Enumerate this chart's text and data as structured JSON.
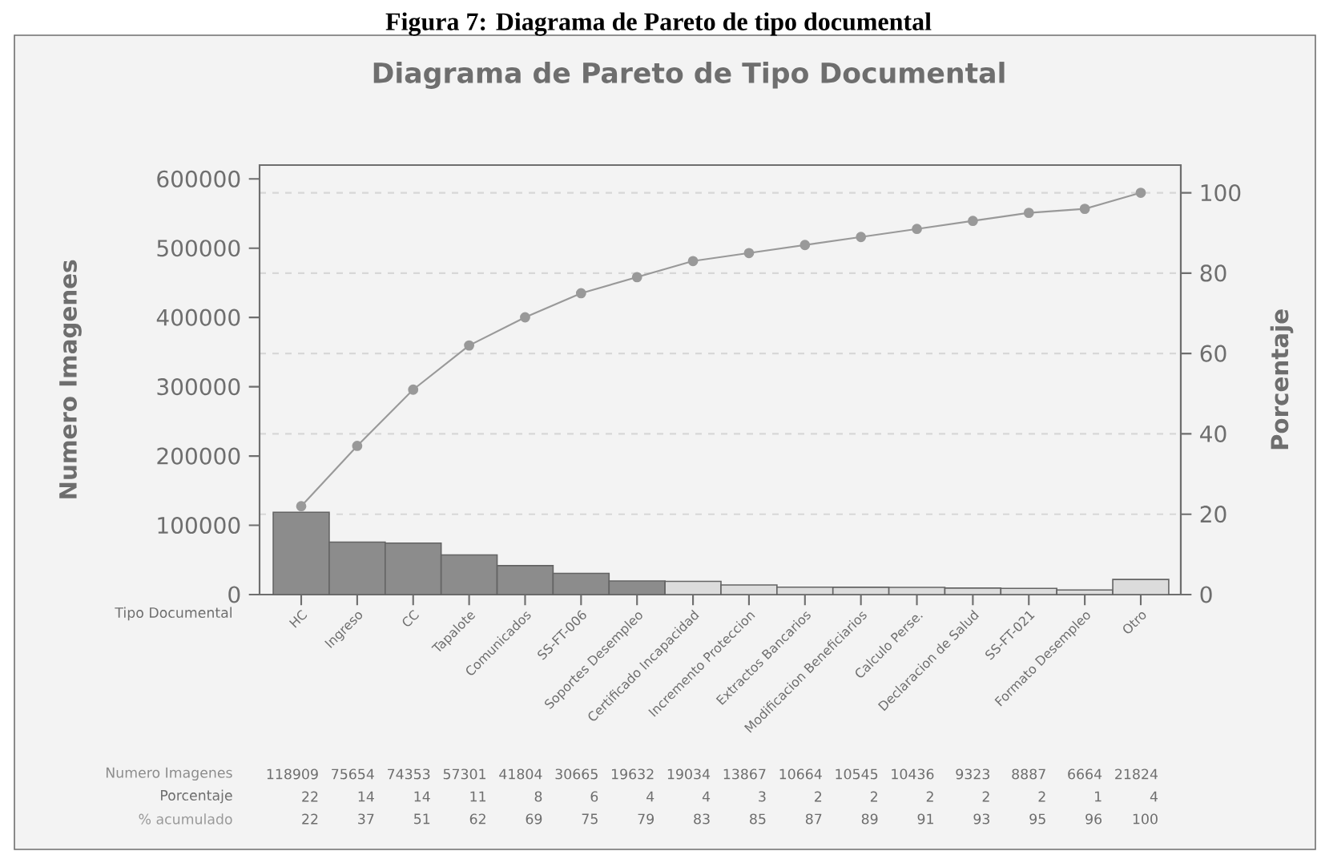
{
  "chart_data": {
    "type": "bar",
    "title": "Diagrama de Pareto de Tipo Documental",
    "xlabel": "Tipo Documental",
    "ylabel": "Numero Imagenes",
    "y2label": "Porcentaje",
    "annotations": [
      "Figura 7: Diagrama de Pareto de tipo documental",
      "Porcentaje",
      "22",
      "14",
      "14",
      "11",
      "8",
      "6",
      "4",
      "4",
      "3",
      "2",
      "2",
      "2",
      "2",
      "2",
      "1",
      "4"
    ],
    "categories": [
      "HC",
      "Ingreso",
      "CC",
      "Tapalote",
      "Comunicados",
      "SS-FT-006",
      "Soportes Desempleo",
      "Certificado Incapacidad",
      "Incremento Proteccion",
      "Extractos Bancarios",
      "Modificacion Beneficiarios",
      "Calculo Perse.",
      "Declaracion de Salud",
      "SS-FT-021",
      "Formato Desempleo",
      "Otro"
    ],
    "series": [
      {
        "name": "Numero Imagenes",
        "values": [
          118909,
          75654,
          74353,
          57301,
          41804,
          30665,
          19632,
          19034,
          13867,
          10664,
          10545,
          10436,
          9323,
          8887,
          6664,
          21824
        ],
        "colors": [
          "#8c8c8c",
          "#8c8c8c",
          "#8c8c8c",
          "#8c8c8c",
          "#8c8c8c",
          "#8c8c8c",
          "#8c8c8c",
          "#dcdcdc",
          "#dcdcdc",
          "#dcdcdc",
          "#dcdcdc",
          "#dcdcdc",
          "#dcdcdc",
          "#dcdcdc",
          "#dcdcdc",
          "#dcdcdc"
        ]
      },
      {
        "name": "% acumulado",
        "type": "line",
        "axis": "y2",
        "color": "#999999",
        "values": [
          22,
          37,
          51,
          62,
          69,
          75,
          79,
          83,
          85,
          87,
          89,
          91,
          93,
          95,
          96,
          100
        ]
      }
    ],
    "ylim": [
      0,
      620000
    ],
    "yticks": [
      0,
      100000,
      200000,
      300000,
      400000,
      500000,
      600000
    ],
    "y2lim": [
      0,
      106.9
    ],
    "y2ticks": [
      0,
      20,
      40,
      60,
      80,
      100
    ],
    "grid": "y2",
    "legend": false,
    "data_labels": true,
    "marker": "circle"
  }
}
